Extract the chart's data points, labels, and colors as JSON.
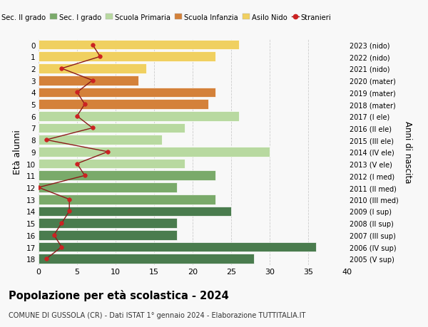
{
  "ages": [
    18,
    17,
    16,
    15,
    14,
    13,
    12,
    11,
    10,
    9,
    8,
    7,
    6,
    5,
    4,
    3,
    2,
    1,
    0
  ],
  "right_labels": [
    "2005 (V sup)",
    "2006 (IV sup)",
    "2007 (III sup)",
    "2008 (II sup)",
    "2009 (I sup)",
    "2010 (III med)",
    "2011 (II med)",
    "2012 (I med)",
    "2013 (V ele)",
    "2014 (IV ele)",
    "2015 (III ele)",
    "2016 (II ele)",
    "2017 (I ele)",
    "2018 (mater)",
    "2019 (mater)",
    "2020 (mater)",
    "2021 (nido)",
    "2022 (nido)",
    "2023 (nido)"
  ],
  "bar_values": [
    28,
    36,
    18,
    18,
    25,
    23,
    18,
    23,
    19,
    30,
    16,
    19,
    26,
    22,
    23,
    13,
    14,
    23,
    26
  ],
  "bar_colors": [
    "#4a7c4e",
    "#4a7c4e",
    "#4a7c4e",
    "#4a7c4e",
    "#4a7c4e",
    "#7aaa6a",
    "#7aaa6a",
    "#7aaa6a",
    "#b8d9a0",
    "#b8d9a0",
    "#b8d9a0",
    "#b8d9a0",
    "#b8d9a0",
    "#d4813a",
    "#d4813a",
    "#d4813a",
    "#f0d060",
    "#f0d060",
    "#f0d060"
  ],
  "stranieri_values": [
    1,
    3,
    2,
    3,
    4,
    4,
    0,
    6,
    5,
    9,
    1,
    7,
    5,
    6,
    5,
    7,
    3,
    8,
    7
  ],
  "legend_labels": [
    "Sec. II grado",
    "Sec. I grado",
    "Scuola Primaria",
    "Scuola Infanzia",
    "Asilo Nido",
    "Stranieri"
  ],
  "legend_colors": [
    "#4a7c4e",
    "#7aaa6a",
    "#b8d9a0",
    "#d4813a",
    "#f0d060",
    "#a02020"
  ],
  "title": "Popolazione per età scolastica - 2024",
  "subtitle": "COMUNE DI GUSSOLA (CR) - Dati ISTAT 1° gennaio 2024 - Elaborazione TUTTITALIA.IT",
  "ylabel_left": "Età alunni",
  "ylabel_right": "Anni di nascita",
  "xlim": [
    0,
    40
  ],
  "xticks": [
    0,
    5,
    10,
    15,
    20,
    25,
    30,
    35,
    40
  ],
  "background_color": "#f8f8f8",
  "grid_color": "#cccccc"
}
